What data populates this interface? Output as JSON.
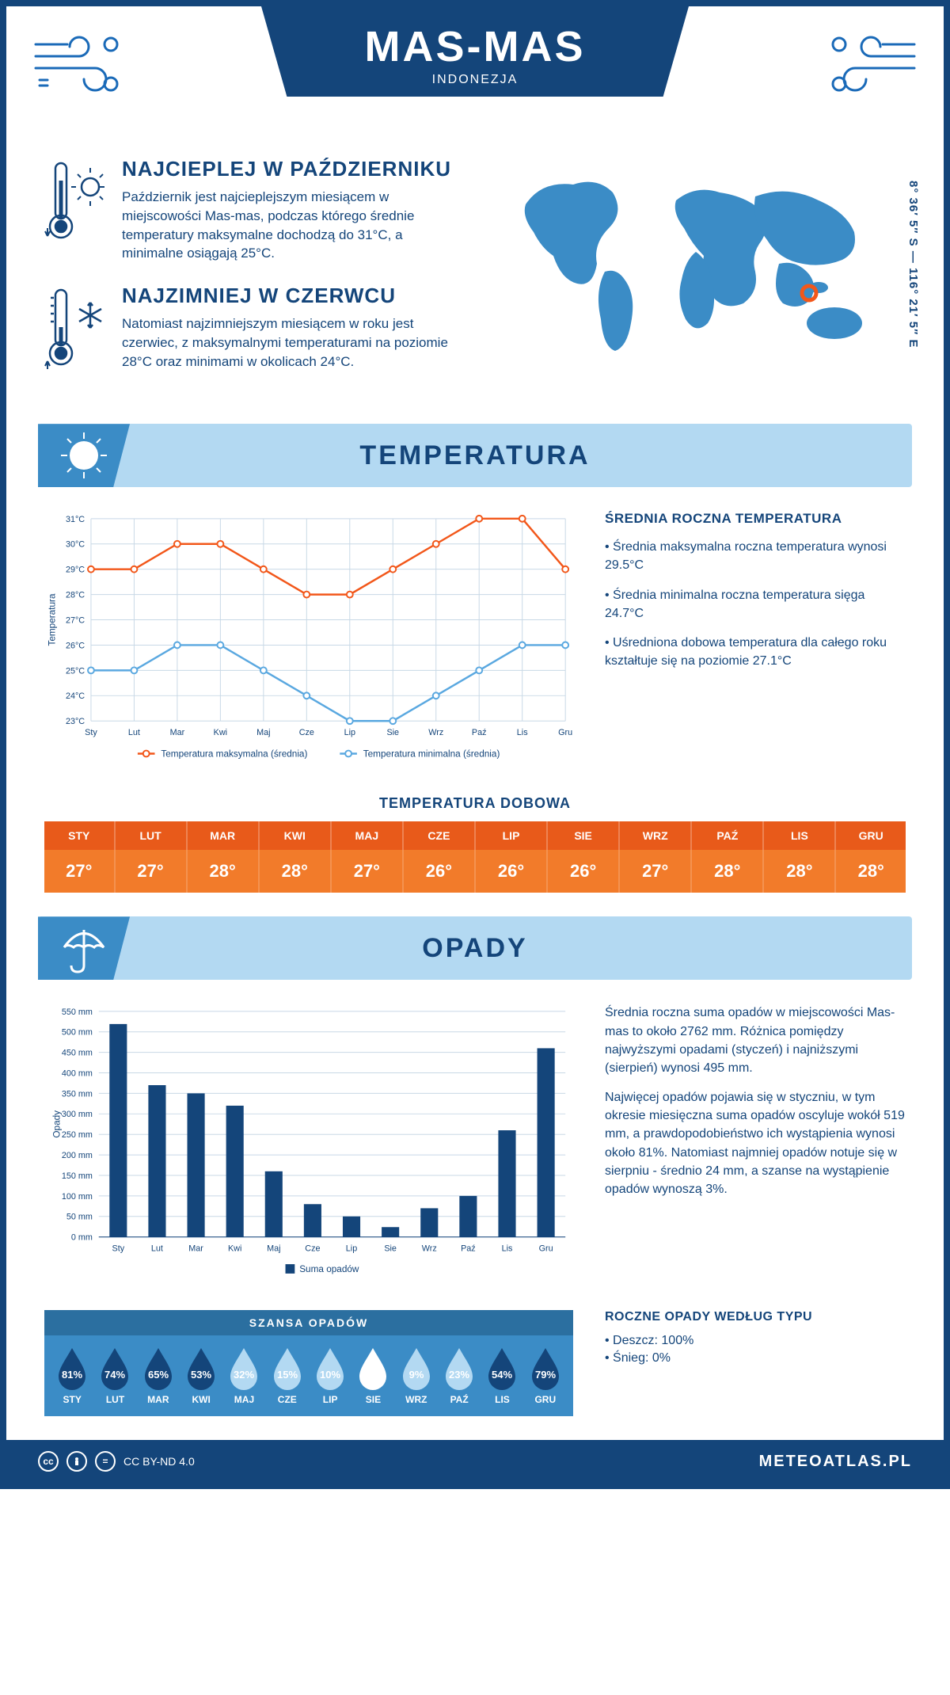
{
  "header": {
    "title": "MAS-MAS",
    "subtitle": "INDONEZJA"
  },
  "coords": "8° 36′ 5″ S — 116° 21′ 5″ E",
  "intro": {
    "warm": {
      "heading": "NAJCIEPLEJ W PAŹDZIERNIKU",
      "text": "Październik jest najcieplejszym miesiącem w miejscowości Mas-mas, podczas którego średnie temperatury maksymalne dochodzą do 31°C, a minimalne osiągają 25°C."
    },
    "cold": {
      "heading": "NAJZIMNIEJ W CZERWCU",
      "text": "Natomiast najzimniejszym miesiącem w roku jest czerwiec, z maksymalnymi temperaturami na poziomie 28°C oraz minimami w okolicach 24°C."
    }
  },
  "months_short": [
    "Sty",
    "Lut",
    "Mar",
    "Kwi",
    "Maj",
    "Cze",
    "Lip",
    "Sie",
    "Wrz",
    "Paź",
    "Lis",
    "Gru"
  ],
  "months_upper": [
    "STY",
    "LUT",
    "MAR",
    "KWI",
    "MAJ",
    "CZE",
    "LIP",
    "SIE",
    "WRZ",
    "PAŹ",
    "LIS",
    "GRU"
  ],
  "temperature": {
    "section_title": "TEMPERATURA",
    "chart": {
      "type": "line",
      "y_label": "Temperatura",
      "ylim": [
        23,
        31
      ],
      "ytick_step": 1,
      "ytick_suffix": "°C",
      "grid_color": "#c8d8e6",
      "series": [
        {
          "name": "Temperatura maksymalna (średnia)",
          "color": "#f2571a",
          "values": [
            29,
            29,
            30,
            30,
            29,
            28,
            28,
            29,
            30,
            31,
            31,
            29
          ]
        },
        {
          "name": "Temperatura minimalna (średnia)",
          "color": "#5aa8e0",
          "values": [
            25,
            25,
            26,
            26,
            25,
            24,
            23,
            23,
            24,
            25,
            26,
            26
          ]
        }
      ]
    },
    "stats_heading": "ŚREDNIA ROCZNA TEMPERATURA",
    "stats": [
      "• Średnia maksymalna roczna temperatura wynosi 29.5°C",
      "• Średnia minimalna roczna temperatura sięga 24.7°C",
      "• Uśredniona dobowa temperatura dla całego roku kształtuje się na poziomie 27.1°C"
    ],
    "daily_heading": "TEMPERATURA DOBOWA",
    "daily_values": [
      "27°",
      "27°",
      "28°",
      "28°",
      "27°",
      "26°",
      "26°",
      "26°",
      "27°",
      "28°",
      "28°",
      "28°"
    ],
    "daily_colors": {
      "header_bg": "#e85a1a",
      "row_bg": "#f27b2a",
      "text": "#ffffff"
    }
  },
  "precipitation": {
    "section_title": "OPADY",
    "chart": {
      "type": "bar",
      "y_label": "Opady",
      "ylim": [
        0,
        550
      ],
      "ytick_step": 50,
      "ytick_suffix": " mm",
      "grid_color": "#c8d8e6",
      "bar_color": "#14457a",
      "bar_width": 0.45,
      "values": [
        519,
        370,
        350,
        320,
        160,
        80,
        50,
        24,
        70,
        100,
        260,
        460
      ],
      "legend": "Suma opadów"
    },
    "text1": "Średnia roczna suma opadów w miejscowości Mas-mas to około 2762 mm. Różnica pomiędzy najwyższymi opadami (styczeń) i najniższymi (sierpień) wynosi 495 mm.",
    "text2": "Najwięcej opadów pojawia się w styczniu, w tym okresie miesięczna suma opadów oscyluje wokół 519 mm, a prawdopodobieństwo ich wystąpienia wynosi około 81%. Natomiast najmniej opadów notuje się w sierpniu - średnio 24 mm, a szanse na wystąpienie opadów wynoszą 3%.",
    "chance_heading": "SZANSA OPADÓW",
    "chance_values": [
      81,
      74,
      65,
      53,
      32,
      15,
      10,
      3,
      9,
      23,
      54,
      79
    ],
    "chance_colors": {
      "full": "#14457a",
      "light": "#b3d9f2",
      "empty": "#ffffff"
    },
    "type_heading": "ROCZNE OPADY WEDŁUG TYPU",
    "type_lines": [
      "• Deszcz: 100%",
      "• Śnieg: 0%"
    ]
  },
  "footer": {
    "license": "CC BY-ND 4.0",
    "site": "METEOATLAS.PL"
  }
}
